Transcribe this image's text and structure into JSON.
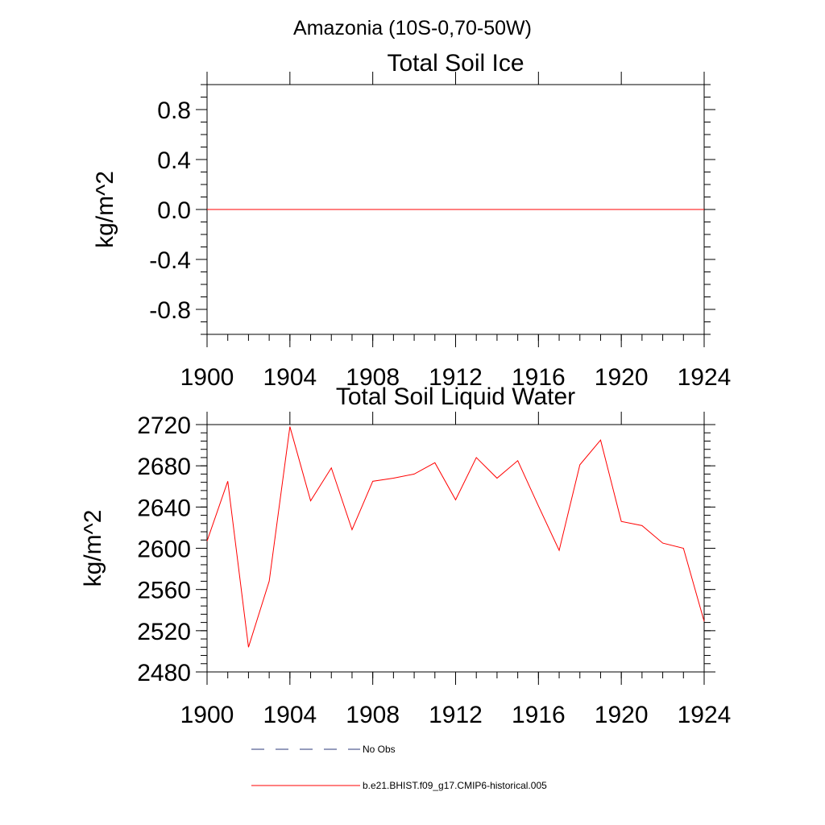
{
  "figure": {
    "suptitle": "Amazonia (10S-0,70-50W)"
  },
  "chart_data": [
    {
      "type": "line",
      "title": "Total Soil Ice",
      "xlabel": "",
      "ylabel": "kg/m^2",
      "xlim": [
        1900,
        1924
      ],
      "ylim": [
        -1.0,
        1.0
      ],
      "xticks": [
        1900,
        1904,
        1908,
        1912,
        1916,
        1920,
        1924
      ],
      "xtick_labels": [
        "1900",
        "1904",
        "1908",
        "1912",
        "1916",
        "1920",
        "1924"
      ],
      "yticks": [
        0.8,
        0.4,
        0.0,
        -0.4,
        -0.8
      ],
      "ytick_labels": [
        "0.8",
        "0.4",
        "0.0",
        "-0.4",
        "-0.8"
      ],
      "yminor_step": 0.1,
      "xminor_step": 1,
      "series": [
        {
          "name": "b.e21.BHIST.f09_g17.CMIP6-historical.005",
          "color": "#ff0000",
          "x": [
            1900,
            1901,
            1902,
            1903,
            1904,
            1905,
            1906,
            1907,
            1908,
            1909,
            1910,
            1911,
            1912,
            1913,
            1914,
            1915,
            1916,
            1917,
            1918,
            1919,
            1920,
            1921,
            1922,
            1923,
            1924
          ],
          "values": [
            0,
            0,
            0,
            0,
            0,
            0,
            0,
            0,
            0,
            0,
            0,
            0,
            0,
            0,
            0,
            0,
            0,
            0,
            0,
            0,
            0,
            0,
            0,
            0,
            0
          ]
        }
      ]
    },
    {
      "type": "line",
      "title": "Total Soil Liquid Water",
      "xlabel": "",
      "ylabel": "kg/m^2",
      "xlim": [
        1900,
        1924
      ],
      "ylim": [
        2480,
        2720
      ],
      "xticks": [
        1900,
        1904,
        1908,
        1912,
        1916,
        1920,
        1924
      ],
      "xtick_labels": [
        "1900",
        "1904",
        "1908",
        "1912",
        "1916",
        "1920",
        "1924"
      ],
      "yticks": [
        2720,
        2680,
        2640,
        2600,
        2560,
        2520,
        2480
      ],
      "ytick_labels": [
        "2720",
        "2680",
        "2640",
        "2600",
        "2560",
        "2520",
        "2480"
      ],
      "yminor_step": 8,
      "xminor_step": 1,
      "series": [
        {
          "name": "b.e21.BHIST.f09_g17.CMIP6-historical.005",
          "color": "#ff0000",
          "x": [
            1900,
            1901,
            1902,
            1903,
            1904,
            1905,
            1906,
            1907,
            1908,
            1909,
            1910,
            1911,
            1912,
            1913,
            1914,
            1915,
            1916,
            1917,
            1918,
            1919,
            1920,
            1921,
            1922,
            1923,
            1924
          ],
          "values": [
            2607,
            2665,
            2504,
            2568,
            2718,
            2646,
            2678,
            2618,
            2665,
            2668,
            2672,
            2683,
            2647,
            2688,
            2668,
            2685,
            2641,
            2598,
            2681,
            2705,
            2626,
            2622,
            2605,
            2600,
            2529
          ]
        }
      ]
    }
  ],
  "legend": {
    "items": [
      {
        "label": "No Obs",
        "style": "dashed",
        "color": "#2b3a7a"
      },
      {
        "label": "b.e21.BHIST.f09_g17.CMIP6-historical.005",
        "style": "solid",
        "color": "#ff0000"
      }
    ]
  }
}
